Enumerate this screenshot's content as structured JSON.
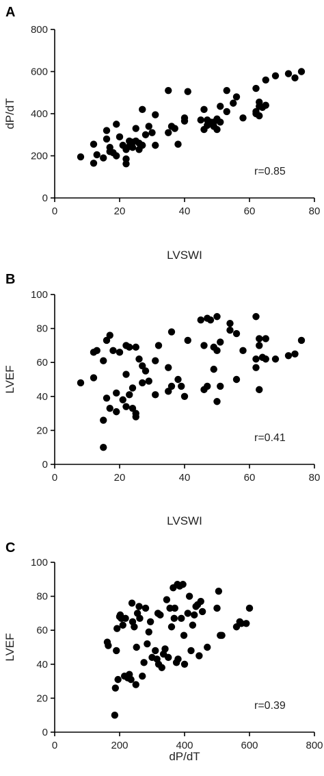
{
  "chart_data": [
    {
      "panel": "A",
      "type": "scatter",
      "xlabel": "LVSWI",
      "ylabel": "dP/dT",
      "xlim": [
        0,
        80
      ],
      "ylim": [
        0,
        800
      ],
      "xticks": [
        0,
        20,
        40,
        60,
        80
      ],
      "yticks": [
        0,
        200,
        400,
        600,
        800
      ],
      "annotation": "r=0.85",
      "grid": false,
      "points": [
        [
          8,
          195
        ],
        [
          12,
          255
        ],
        [
          12,
          165
        ],
        [
          13,
          205
        ],
        [
          15,
          190
        ],
        [
          16,
          280
        ],
        [
          16,
          320
        ],
        [
          17,
          240
        ],
        [
          17,
          220
        ],
        [
          18,
          215
        ],
        [
          19,
          350
        ],
        [
          19,
          200
        ],
        [
          20,
          290
        ],
        [
          21,
          250
        ],
        [
          22,
          185
        ],
        [
          22,
          162
        ],
        [
          22,
          230
        ],
        [
          23,
          270
        ],
        [
          23,
          245
        ],
        [
          24,
          265
        ],
        [
          24,
          240
        ],
        [
          25,
          330
        ],
        [
          25,
          270
        ],
        [
          26,
          230
        ],
        [
          26,
          260
        ],
        [
          27,
          420
        ],
        [
          27,
          250
        ],
        [
          28,
          300
        ],
        [
          29,
          340
        ],
        [
          30,
          310
        ],
        [
          31,
          395
        ],
        [
          31,
          250
        ],
        [
          35,
          310
        ],
        [
          35,
          510
        ],
        [
          36,
          340
        ],
        [
          37,
          330
        ],
        [
          38,
          255
        ],
        [
          40,
          365
        ],
        [
          40,
          380
        ],
        [
          41,
          505
        ],
        [
          45,
          370
        ],
        [
          46,
          420
        ],
        [
          46,
          325
        ],
        [
          47,
          370
        ],
        [
          47,
          345
        ],
        [
          48,
          360
        ],
        [
          49,
          360
        ],
        [
          49,
          340
        ],
        [
          50,
          375
        ],
        [
          50,
          325
        ],
        [
          51,
          360
        ],
        [
          51,
          435
        ],
        [
          53,
          510
        ],
        [
          53,
          410
        ],
        [
          55,
          450
        ],
        [
          56,
          480
        ],
        [
          58,
          380
        ],
        [
          62,
          400
        ],
        [
          62,
          410
        ],
        [
          62,
          520
        ],
        [
          63,
          390
        ],
        [
          63,
          435
        ],
        [
          63,
          455
        ],
        [
          64,
          430
        ],
        [
          65,
          440
        ],
        [
          65,
          560
        ],
        [
          68,
          580
        ],
        [
          72,
          590
        ],
        [
          74,
          570
        ],
        [
          76,
          600
        ]
      ]
    },
    {
      "panel": "B",
      "type": "scatter",
      "xlabel": "LVSWI",
      "ylabel": "LVEF",
      "xlim": [
        0,
        80
      ],
      "ylim": [
        0,
        100
      ],
      "xticks": [
        0,
        20,
        40,
        60,
        80
      ],
      "yticks": [
        0,
        20,
        40,
        60,
        80,
        100
      ],
      "annotation": "r=0.41",
      "grid": false,
      "points": [
        [
          8,
          48
        ],
        [
          12,
          51
        ],
        [
          12,
          66
        ],
        [
          13,
          67
        ],
        [
          15,
          26
        ],
        [
          15,
          10
        ],
        [
          15,
          61
        ],
        [
          16,
          73
        ],
        [
          16,
          39
        ],
        [
          17,
          76
        ],
        [
          17,
          33
        ],
        [
          18,
          67
        ],
        [
          19,
          42
        ],
        [
          19,
          31
        ],
        [
          20,
          66
        ],
        [
          21,
          38
        ],
        [
          22,
          70
        ],
        [
          22,
          53
        ],
        [
          22,
          34
        ],
        [
          23,
          69
        ],
        [
          23,
          41
        ],
        [
          24,
          45
        ],
        [
          24,
          33
        ],
        [
          25,
          69
        ],
        [
          25,
          30
        ],
        [
          25,
          28
        ],
        [
          26,
          62
        ],
        [
          27,
          48
        ],
        [
          27,
          58
        ],
        [
          28,
          55
        ],
        [
          29,
          49
        ],
        [
          31,
          61
        ],
        [
          31,
          41
        ],
        [
          32,
          70
        ],
        [
          35,
          57
        ],
        [
          35,
          43
        ],
        [
          36,
          78
        ],
        [
          36,
          46
        ],
        [
          38,
          50
        ],
        [
          39,
          46
        ],
        [
          40,
          40
        ],
        [
          41,
          73
        ],
        [
          45,
          85
        ],
        [
          46,
          44
        ],
        [
          46,
          70
        ],
        [
          47,
          86
        ],
        [
          47,
          46
        ],
        [
          48,
          85
        ],
        [
          49,
          69
        ],
        [
          49,
          56
        ],
        [
          50,
          87
        ],
        [
          50,
          37
        ],
        [
          50,
          67
        ],
        [
          51,
          72
        ],
        [
          51,
          46
        ],
        [
          54,
          83
        ],
        [
          54,
          79
        ],
        [
          56,
          77
        ],
        [
          56,
          50
        ],
        [
          58,
          67
        ],
        [
          62,
          87
        ],
        [
          62,
          57
        ],
        [
          62,
          62
        ],
        [
          63,
          70
        ],
        [
          63,
          74
        ],
        [
          63,
          44
        ],
        [
          64,
          63
        ],
        [
          65,
          74
        ],
        [
          65,
          62
        ],
        [
          68,
          62
        ],
        [
          72,
          64
        ],
        [
          74,
          65
        ],
        [
          76,
          73
        ]
      ]
    },
    {
      "panel": "C",
      "type": "scatter",
      "xlabel": "dP/dT",
      "ylabel": "LVEF",
      "xlim": [
        0,
        800
      ],
      "ylim": [
        0,
        100
      ],
      "xticks": [
        0,
        200,
        400,
        600,
        800
      ],
      "yticks": [
        0,
        20,
        40,
        60,
        80,
        100
      ],
      "annotation": "r=0.39",
      "grid": false,
      "points": [
        [
          162,
          53
        ],
        [
          165,
          51
        ],
        [
          185,
          10
        ],
        [
          187,
          26
        ],
        [
          190,
          48
        ],
        [
          192,
          61
        ],
        [
          195,
          31
        ],
        [
          200,
          68
        ],
        [
          202,
          69
        ],
        [
          205,
          67
        ],
        [
          210,
          63
        ],
        [
          215,
          33
        ],
        [
          218,
          67
        ],
        [
          225,
          32
        ],
        [
          230,
          34
        ],
        [
          235,
          31
        ],
        [
          238,
          76
        ],
        [
          240,
          65
        ],
        [
          245,
          62
        ],
        [
          250,
          28
        ],
        [
          252,
          50
        ],
        [
          255,
          70
        ],
        [
          260,
          74
        ],
        [
          262,
          67
        ],
        [
          270,
          33
        ],
        [
          275,
          41
        ],
        [
          280,
          73
        ],
        [
          285,
          52
        ],
        [
          290,
          59
        ],
        [
          295,
          65
        ],
        [
          300,
          44
        ],
        [
          310,
          48
        ],
        [
          315,
          43
        ],
        [
          318,
          70
        ],
        [
          320,
          40
        ],
        [
          325,
          69
        ],
        [
          330,
          38
        ],
        [
          335,
          46
        ],
        [
          340,
          49
        ],
        [
          345,
          78
        ],
        [
          350,
          44
        ],
        [
          355,
          73
        ],
        [
          360,
          62
        ],
        [
          365,
          85
        ],
        [
          368,
          67
        ],
        [
          370,
          73
        ],
        [
          375,
          41
        ],
        [
          378,
          87
        ],
        [
          380,
          43
        ],
        [
          385,
          86
        ],
        [
          390,
          67
        ],
        [
          395,
          87
        ],
        [
          398,
          57
        ],
        [
          400,
          40
        ],
        [
          410,
          70
        ],
        [
          415,
          80
        ],
        [
          420,
          48
        ],
        [
          425,
          63
        ],
        [
          430,
          69
        ],
        [
          435,
          74
        ],
        [
          440,
          75
        ],
        [
          445,
          45
        ],
        [
          450,
          77
        ],
        [
          455,
          71
        ],
        [
          470,
          50
        ],
        [
          500,
          73
        ],
        [
          505,
          83
        ],
        [
          510,
          57
        ],
        [
          515,
          57
        ],
        [
          560,
          62
        ],
        [
          570,
          65
        ],
        [
          575,
          64
        ],
        [
          590,
          64
        ],
        [
          600,
          73
        ]
      ]
    }
  ]
}
